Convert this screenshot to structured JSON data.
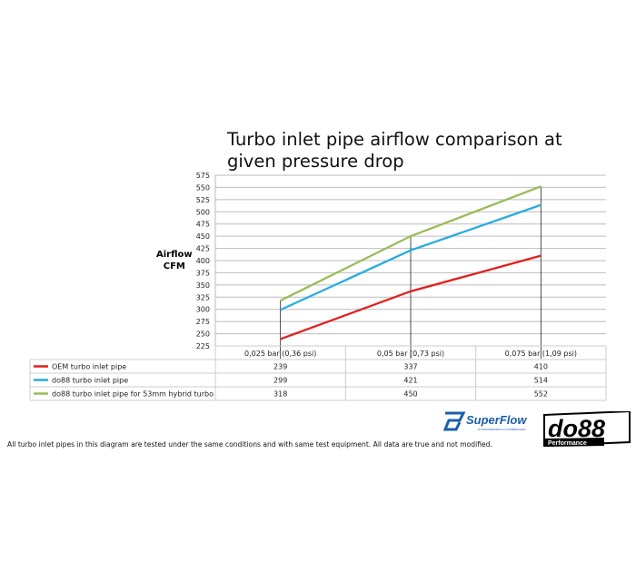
{
  "chart_data": {
    "type": "line",
    "title": "Turbo inlet pipe airflow comparison at given pressure drop",
    "ylabel": [
      "Airflow",
      "CFM"
    ],
    "ylim": [
      225,
      575
    ],
    "yticks": [
      225,
      250,
      275,
      300,
      325,
      350,
      375,
      400,
      425,
      450,
      475,
      500,
      525,
      550,
      575
    ],
    "grid": true,
    "legend": "table-below",
    "categories": [
      "0,025 bar (0,36 psi)",
      "0,05 bar (0,73 psi)",
      "0,075 bar (1,09 psi)"
    ],
    "series": [
      {
        "name": "OEM turbo inlet pipe",
        "color": "#e0201c",
        "values": [
          239,
          337,
          410
        ]
      },
      {
        "name": "do88 turbo inlet pipe",
        "color": "#29abe2",
        "values": [
          299,
          421,
          514
        ]
      },
      {
        "name": "do88 turbo inlet pipe for 53mm hybrid turbo",
        "color": "#9bbb59",
        "values": [
          318,
          450,
          552
        ]
      }
    ]
  },
  "note": "All turbo inlet pipes in this diagram are tested under the same conditions and with same test equipment. All data are true and not modified.",
  "logos": {
    "superflow": "SuperFlow",
    "superflow_sub": "DYNAMOMETERS & FLOWBENCHES",
    "do88": "do88",
    "do88_sub": "Performance"
  }
}
